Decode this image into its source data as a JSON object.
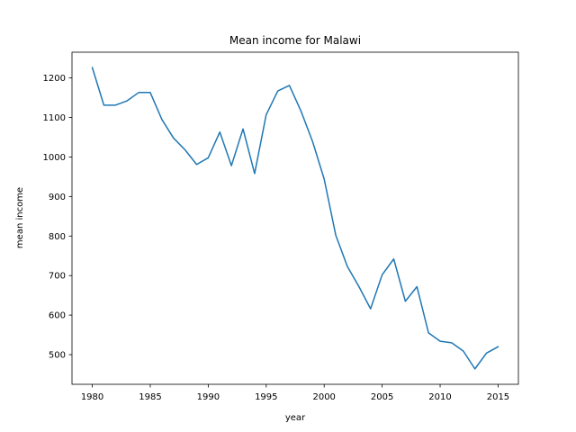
{
  "chart_data": {
    "type": "line",
    "title": "Mean income for Malawi",
    "xlabel": "year",
    "ylabel": "mean income",
    "xlim": [
      1978.25,
      2016.75
    ],
    "ylim": [
      425,
      1265
    ],
    "xticks": [
      1980,
      1985,
      1990,
      1995,
      2000,
      2005,
      2010,
      2015
    ],
    "yticks": [
      500,
      600,
      700,
      800,
      900,
      1000,
      1100,
      1200
    ],
    "grid": false,
    "legend": "none",
    "color": "#1f77b4",
    "series": [
      {
        "x": [
          1980,
          1981,
          1982,
          1983,
          1984,
          1985,
          1986,
          1987,
          1988,
          1989,
          1990,
          1991,
          1992,
          1993,
          1994,
          1995,
          1996,
          1997,
          1998,
          1999,
          2000,
          2001,
          2002,
          2003,
          2004,
          2005,
          2006,
          2007,
          2008,
          2009,
          2010,
          2011,
          2012,
          2013,
          2014,
          2015
        ],
        "y": [
          1226,
          1131,
          1131,
          1142,
          1163,
          1163,
          1095,
          1048,
          1018,
          981,
          998,
          1063,
          978,
          1071,
          958,
          1107,
          1167,
          1181,
          1116,
          1039,
          944,
          802,
          723,
          672,
          616,
          702,
          742,
          635,
          672,
          555,
          534,
          530,
          509,
          464,
          504,
          520
        ]
      }
    ]
  }
}
